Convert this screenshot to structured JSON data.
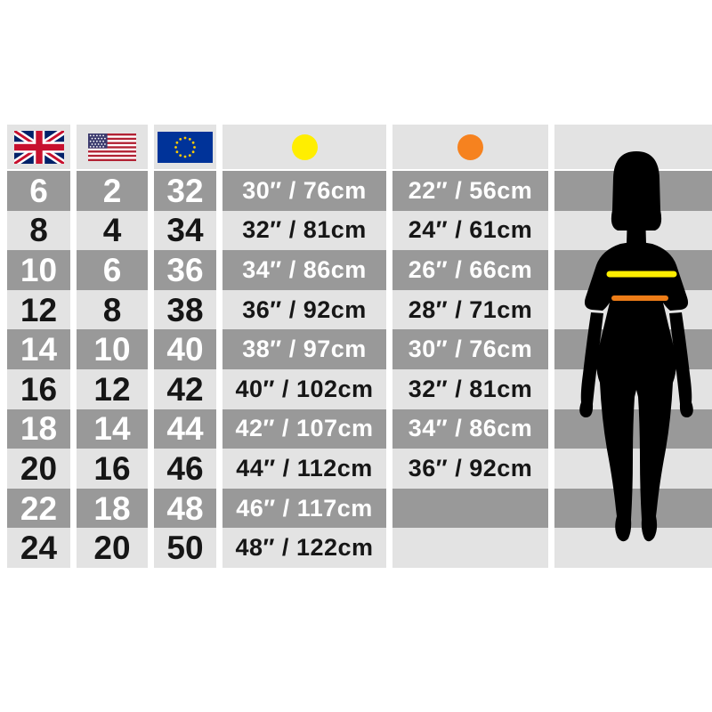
{
  "colors": {
    "page_bg": "#ffffff",
    "row_dark": "#999999",
    "row_light": "#e3e3e3",
    "bust_marker": "#ffee00",
    "waist_marker": "#f6821f",
    "bust_line": "#ffee00",
    "waist_line": "#ed7c17",
    "silhouette": "#000000",
    "uk_flag_blue": "#012169",
    "uk_flag_red": "#C8102E",
    "us_flag_blue": "#3C3B6E",
    "us_flag_red": "#B22234",
    "eu_flag_blue": "#003399",
    "eu_flag_star": "#FFCC00"
  },
  "icons": {
    "uk": "uk-flag",
    "us": "us-flag",
    "eu": "eu-flag",
    "bust": "yellow-circle",
    "waist": "orange-circle"
  },
  "table": {
    "rows": [
      {
        "uk": "6",
        "us": "2",
        "eu": "32",
        "bust": "30″ / 76cm",
        "waist": "22″ / 56cm"
      },
      {
        "uk": "8",
        "us": "4",
        "eu": "34",
        "bust": "32″ / 81cm",
        "waist": "24″ / 61cm"
      },
      {
        "uk": "10",
        "us": "6",
        "eu": "36",
        "bust": "34″ / 86cm",
        "waist": "26″ / 66cm"
      },
      {
        "uk": "12",
        "us": "8",
        "eu": "38",
        "bust": "36″ / 92cm",
        "waist": "28″ / 71cm"
      },
      {
        "uk": "14",
        "us": "10",
        "eu": "40",
        "bust": "38″ / 97cm",
        "waist": "30″ / 76cm"
      },
      {
        "uk": "16",
        "us": "12",
        "eu": "42",
        "bust": "40″ / 102cm",
        "waist": "32″ / 81cm"
      },
      {
        "uk": "18",
        "us": "14",
        "eu": "44",
        "bust": "42″ / 107cm",
        "waist": "34″ / 86cm"
      },
      {
        "uk": "20",
        "us": "16",
        "eu": "46",
        "bust": "44″ / 112cm",
        "waist": "36″ / 92cm"
      },
      {
        "uk": "22",
        "us": "18",
        "eu": "48",
        "bust": "46″ / 117cm",
        "waist": ""
      },
      {
        "uk": "24",
        "us": "20",
        "eu": "50",
        "bust": "48″ / 122cm",
        "waist": ""
      }
    ]
  },
  "chart_data": {
    "type": "table",
    "header_icons": [
      "uk-flag",
      "us-flag",
      "eu-flag",
      "yellow-circle",
      "orange-circle"
    ],
    "rows": [
      [
        "6",
        "2",
        "32",
        "30″ / 76cm",
        "22″ / 56cm"
      ],
      [
        "8",
        "4",
        "34",
        "32″ / 81cm",
        "24″ / 61cm"
      ],
      [
        "10",
        "6",
        "36",
        "34″ / 86cm",
        "26″ / 66cm"
      ],
      [
        "12",
        "8",
        "38",
        "36″ / 92cm",
        "28″ / 71cm"
      ],
      [
        "14",
        "10",
        "40",
        "38″ / 97cm",
        "30″ / 76cm"
      ],
      [
        "16",
        "12",
        "42",
        "40″ / 102cm",
        "32″ / 81cm"
      ],
      [
        "18",
        "14",
        "44",
        "42″ / 107cm",
        "34″ / 86cm"
      ],
      [
        "20",
        "16",
        "46",
        "44″ / 112cm",
        "36″ / 92cm"
      ],
      [
        "22",
        "18",
        "48",
        "46″ / 117cm",
        ""
      ],
      [
        "24",
        "20",
        "50",
        "48″ / 122cm",
        ""
      ]
    ],
    "layout": "alternating gray stripes, woman silhouette at right with yellow bust line and orange waist line"
  }
}
